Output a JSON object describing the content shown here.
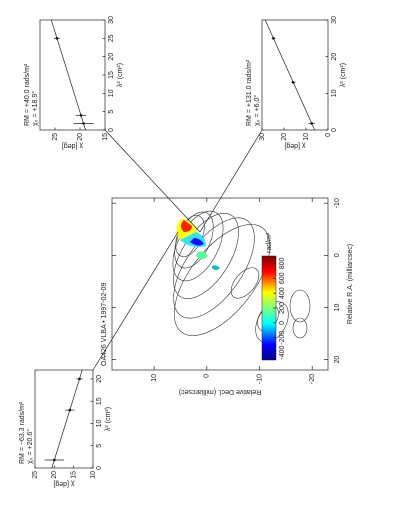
{
  "map": {
    "title": "OA426 VLBA • 1997-02-09",
    "xlabel": "Relative R.A. (milliarcsec)",
    "ylabel": "Relative Decl. (milliarcsec)",
    "xlim": [
      22,
      -11
    ],
    "xticks": [
      20,
      10,
      0,
      -10
    ],
    "ylim": [
      -23,
      18
    ],
    "yticks": [
      10,
      0,
      -10,
      -20
    ],
    "colorbar": {
      "unit": "rad/m²",
      "lim": [
        -500,
        900
      ],
      "ticks": [
        -400,
        -200,
        0,
        200,
        400,
        600,
        800
      ]
    }
  },
  "insets": [
    {
      "rm_label": "RM = −63.3 rads/m²",
      "chi0_label": "χ₀ = +20.6°",
      "xlabel": "λ² (cm²)",
      "ylabel": "χ [deg]",
      "xlim": [
        0,
        22
      ],
      "xticks": [
        0,
        5,
        10,
        15,
        20
      ],
      "ylim": [
        10,
        25
      ],
      "yticks": [
        10,
        15,
        20,
        25
      ],
      "x": [
        1.8,
        13.0,
        20.0
      ],
      "values": [
        20,
        16,
        13.5
      ],
      "errors": [
        2.5,
        1.2,
        0.8
      ]
    },
    {
      "rm_label": "RM = +40.0 rads/m²",
      "chi0_label": "χ₀ = +18.9°",
      "xlabel": "λ² (cm²)",
      "ylabel": "χ [deg]",
      "xlim": [
        0,
        30
      ],
      "xticks": [
        0,
        5,
        10,
        15,
        20,
        25,
        30
      ],
      "ylim": [
        15,
        28
      ],
      "yticks": [
        15,
        20,
        25
      ],
      "x": [
        1.8,
        4.0,
        25.0
      ],
      "values": [
        19.3,
        19.8,
        24.6
      ],
      "errors": [
        2.0,
        1.0,
        0.6
      ]
    },
    {
      "rm_label": "RM = +131.0 rads/m²",
      "chi0_label": "χ₀ = +6.0°",
      "xlabel": "λ² (cm²)",
      "ylabel": "χ [deg]",
      "xlim": [
        0,
        30
      ],
      "xticks": [
        0,
        10,
        20,
        30
      ],
      "ylim": [
        0,
        30
      ],
      "yticks": [
        0,
        10,
        20,
        30
      ],
      "x": [
        1.8,
        13.0,
        25.0
      ],
      "values": [
        7.4,
        15.8,
        24.8
      ],
      "errors": [
        1.5,
        1.0,
        0.8
      ]
    }
  ]
}
